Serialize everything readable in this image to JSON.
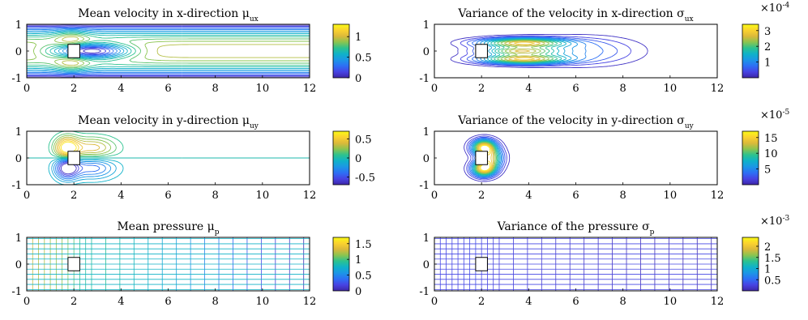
{
  "figure_title": "",
  "colormap": [
    "#3e26a8",
    "#4743e3",
    "#2d6ff5",
    "#1c96e6",
    "#0fb2c9",
    "#2cc28f",
    "#8bc44f",
    "#dcb93a",
    "#fbd22f",
    "#f9fb15"
  ],
  "obstacle_color": "#ffffff",
  "chart_data": [
    {
      "id": "ux-mean",
      "type": "contour",
      "title": "Mean velocity in x-direction μ",
      "title_sub": "ux",
      "xlim": [
        0,
        12
      ],
      "ylim": [
        -1,
        1
      ],
      "xticks": [
        "0",
        "2",
        "4",
        "6",
        "8",
        "10",
        "12"
      ],
      "yticks": [
        "1",
        "0",
        "-1"
      ],
      "field": "ux",
      "colorbar": {
        "min": 0,
        "max": 1.3,
        "ticks": [
          "1",
          "0.5",
          "0"
        ],
        "tick_values": [
          1,
          0.5,
          0
        ],
        "multiplier": ""
      }
    },
    {
      "id": "ux-var",
      "type": "contour",
      "title": "Variance of the velocity in x-direction σ",
      "title_sub": "ux",
      "xlim": [
        0,
        12
      ],
      "ylim": [
        -1,
        1
      ],
      "xticks": [
        "0",
        "2",
        "4",
        "6",
        "8",
        "10",
        "12"
      ],
      "yticks": [
        "1",
        "0",
        "-1"
      ],
      "field": "uxvar",
      "colorbar": {
        "min": 0,
        "max": 3.4,
        "ticks": [
          "3",
          "2",
          "1"
        ],
        "tick_values": [
          3,
          2,
          1
        ],
        "multiplier": "×10-4"
      }
    },
    {
      "id": "uy-mean",
      "type": "contour",
      "title": "Mean velocity in y-direction μ",
      "title_sub": "uy",
      "xlim": [
        0,
        12
      ],
      "ylim": [
        -1,
        1
      ],
      "xticks": [
        "0",
        "2",
        "4",
        "6",
        "8",
        "10",
        "12"
      ],
      "yticks": [
        "1",
        "0",
        "-1"
      ],
      "field": "uy",
      "colorbar": {
        "min": -0.7,
        "max": 0.7,
        "ticks": [
          "0.5",
          "0",
          "-0.5"
        ],
        "tick_values": [
          0.5,
          0,
          -0.5
        ],
        "multiplier": ""
      }
    },
    {
      "id": "uy-var",
      "type": "contour",
      "title": "Variance of the velocity in y-direction σ",
      "title_sub": "uy",
      "xlim": [
        0,
        12
      ],
      "ylim": [
        -1,
        1
      ],
      "xticks": [
        "0",
        "2",
        "4",
        "6",
        "8",
        "10",
        "12"
      ],
      "yticks": [
        "1",
        "0",
        "-1"
      ],
      "field": "uyvar",
      "colorbar": {
        "min": 0,
        "max": 17,
        "ticks": [
          "15",
          "10",
          "5"
        ],
        "tick_values": [
          15,
          10,
          5
        ],
        "multiplier": "×10-5"
      }
    },
    {
      "id": "p-mean",
      "type": "contour",
      "title": "Mean pressure μ",
      "title_sub": "p",
      "xlim": [
        0,
        12
      ],
      "ylim": [
        -1,
        1
      ],
      "xticks": [
        "0",
        "2",
        "4",
        "6",
        "8",
        "10",
        "12"
      ],
      "yticks": [
        "1",
        "0",
        "-1"
      ],
      "field": "p",
      "colorbar": {
        "min": 0,
        "max": 1.7,
        "ticks": [
          "1.5",
          "1",
          "0.5",
          "0"
        ],
        "tick_values": [
          1.5,
          1,
          0.5,
          0
        ],
        "multiplier": ""
      }
    },
    {
      "id": "p-var",
      "type": "contour",
      "title": "Variance of the pressure σ",
      "title_sub": "p",
      "xlim": [
        0,
        12
      ],
      "ylim": [
        -1,
        1
      ],
      "xticks": [
        "0",
        "2",
        "4",
        "6",
        "8",
        "10",
        "12"
      ],
      "yticks": [
        "1",
        "0",
        "-1"
      ],
      "field": "pvar",
      "colorbar": {
        "min": 0,
        "max": 2.4,
        "ticks": [
          "2",
          "1.5",
          "1",
          "0.5"
        ],
        "tick_values": [
          2,
          1.5,
          1,
          0.5
        ],
        "multiplier": "×10-3"
      }
    }
  ]
}
